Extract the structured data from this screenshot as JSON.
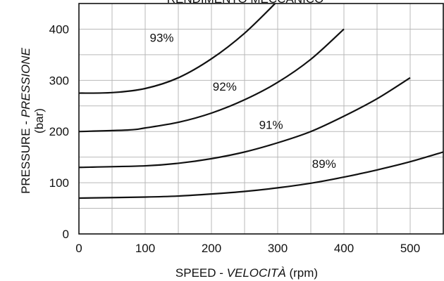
{
  "chart_data": {
    "type": "line",
    "title": "RENDIMENTO MECCANICO",
    "xlabel": {
      "main": "SPEED - ",
      "italic": "VELOCITÀ",
      "unit": " (rpm)"
    },
    "ylabel": {
      "main": "PRESSURE - ",
      "italic": "PRESSIONE",
      "unit": "(bar)"
    },
    "xlim": [
      0,
      550
    ],
    "ylim": [
      0,
      450
    ],
    "xticks": [
      0,
      100,
      200,
      300,
      400,
      500
    ],
    "yticks": [
      0,
      100,
      200,
      300,
      400
    ],
    "grid_x": [
      0,
      50,
      100,
      150,
      200,
      250,
      300,
      350,
      400,
      450,
      500,
      550
    ],
    "grid_y": [
      0,
      50,
      100,
      150,
      200,
      250,
      300,
      350,
      400,
      450
    ],
    "grid": true,
    "series": [
      {
        "name": "93%",
        "label_at": [
          125,
          375
        ],
        "points": [
          [
            0,
            275
          ],
          [
            50,
            276
          ],
          [
            100,
            284
          ],
          [
            150,
            305
          ],
          [
            200,
            342
          ],
          [
            250,
            392
          ],
          [
            300,
            455
          ]
        ]
      },
      {
        "name": "92%",
        "label_at": [
          220,
          280
        ],
        "points": [
          [
            0,
            200
          ],
          [
            75,
            203
          ],
          [
            100,
            207
          ],
          [
            150,
            218
          ],
          [
            200,
            236
          ],
          [
            250,
            262
          ],
          [
            300,
            296
          ],
          [
            350,
            341
          ],
          [
            400,
            400
          ]
        ]
      },
      {
        "name": "91%",
        "label_at": [
          290,
          205
        ],
        "points": [
          [
            0,
            130
          ],
          [
            100,
            133
          ],
          [
            150,
            138
          ],
          [
            200,
            147
          ],
          [
            250,
            160
          ],
          [
            300,
            178
          ],
          [
            350,
            200
          ],
          [
            400,
            230
          ],
          [
            450,
            264
          ],
          [
            500,
            305
          ]
        ]
      },
      {
        "name": "89%",
        "label_at": [
          370,
          129
        ],
        "points": [
          [
            0,
            70
          ],
          [
            100,
            72
          ],
          [
            150,
            74
          ],
          [
            200,
            78
          ],
          [
            250,
            83
          ],
          [
            300,
            90
          ],
          [
            350,
            99
          ],
          [
            400,
            111
          ],
          [
            450,
            125
          ],
          [
            500,
            141
          ],
          [
            550,
            160
          ]
        ]
      }
    ]
  }
}
